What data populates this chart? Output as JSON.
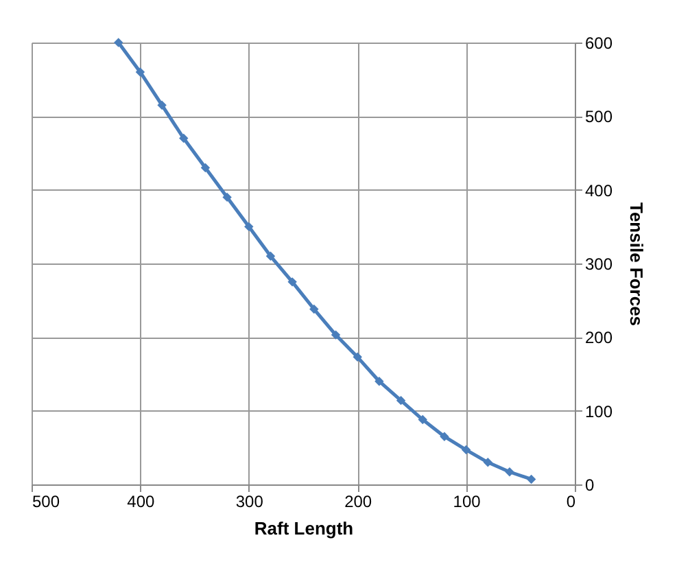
{
  "chart_data": {
    "type": "line",
    "xlabel": "Raft Length",
    "ylabel": "Tensile Forces",
    "x": [
      420,
      400,
      380,
      360,
      340,
      320,
      300,
      280,
      260,
      240,
      220,
      200,
      180,
      160,
      140,
      120,
      100,
      80,
      60,
      40
    ],
    "series": [
      {
        "color": "#4a7ebb",
        "values": [
          600,
          560,
          515,
          470,
          430,
          390,
          350,
          310,
          275,
          238,
          203,
          173,
          140,
          114,
          88,
          65,
          47,
          30,
          17,
          7
        ]
      }
    ],
    "xlim": [
      500,
      0
    ],
    "xticks": [
      500,
      400,
      300,
      200,
      100,
      0
    ],
    "ylim": [
      0,
      600
    ],
    "yticks": [
      0,
      100,
      200,
      300,
      400,
      500,
      600
    ],
    "grid": true,
    "marker": "diamond",
    "line_style": "solid",
    "legend": false
  }
}
